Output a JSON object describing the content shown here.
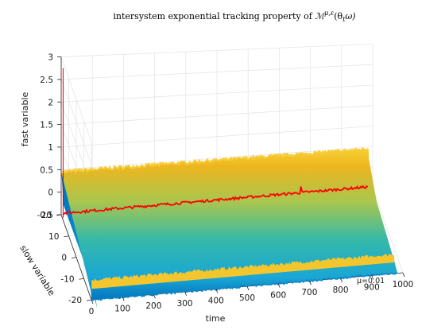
{
  "chart_data": {
    "type": "surface",
    "title": "intersystem exponential tracking property of ℳ^{μ,ε}(θ_tω)",
    "title_parts": {
      "prefix": "intersystem exponential tracking property of ",
      "symbol": "ℳ",
      "superscript": "μ,ε",
      "suffix": "(θ",
      "subscript": "t",
      "tail": "ω)"
    },
    "xlabel": "time",
    "ylabel": "slow variable",
    "zlabel": "fast variable",
    "xlim": [
      0,
      1000
    ],
    "ylim": [
      -20,
      20
    ],
    "zlim": [
      -0.5,
      3
    ],
    "xticks": [
      "0",
      "100",
      "200",
      "300",
      "400",
      "500",
      "600",
      "700",
      "800",
      "900",
      "1000"
    ],
    "yticks": [
      "-20",
      "-10",
      "0",
      "10",
      "20"
    ],
    "zticks": [
      "-0.5",
      "0",
      "0.5",
      "1",
      "1.5",
      "2",
      "2.5",
      "3"
    ],
    "grid": true,
    "annotation": "μ=0.01",
    "colormap": [
      "#0072bd",
      "#1aa6d6",
      "#35b9a8",
      "#a9c64e",
      "#edb61f",
      "#f9d033"
    ],
    "surface": {
      "initial_value_at_y_20": 0.5,
      "initial_value_at_y_minus_20": -0.6,
      "settled_value_at_y_20": 0.45,
      "settled_value_at_y_minus_20": -0.6,
      "settle_time": 15
    },
    "series": [
      {
        "name": "",
        "color": "#ff0000",
        "slow_variable": 20,
        "initial_spike": 2.75,
        "settled_value": -0.47
      }
    ]
  }
}
